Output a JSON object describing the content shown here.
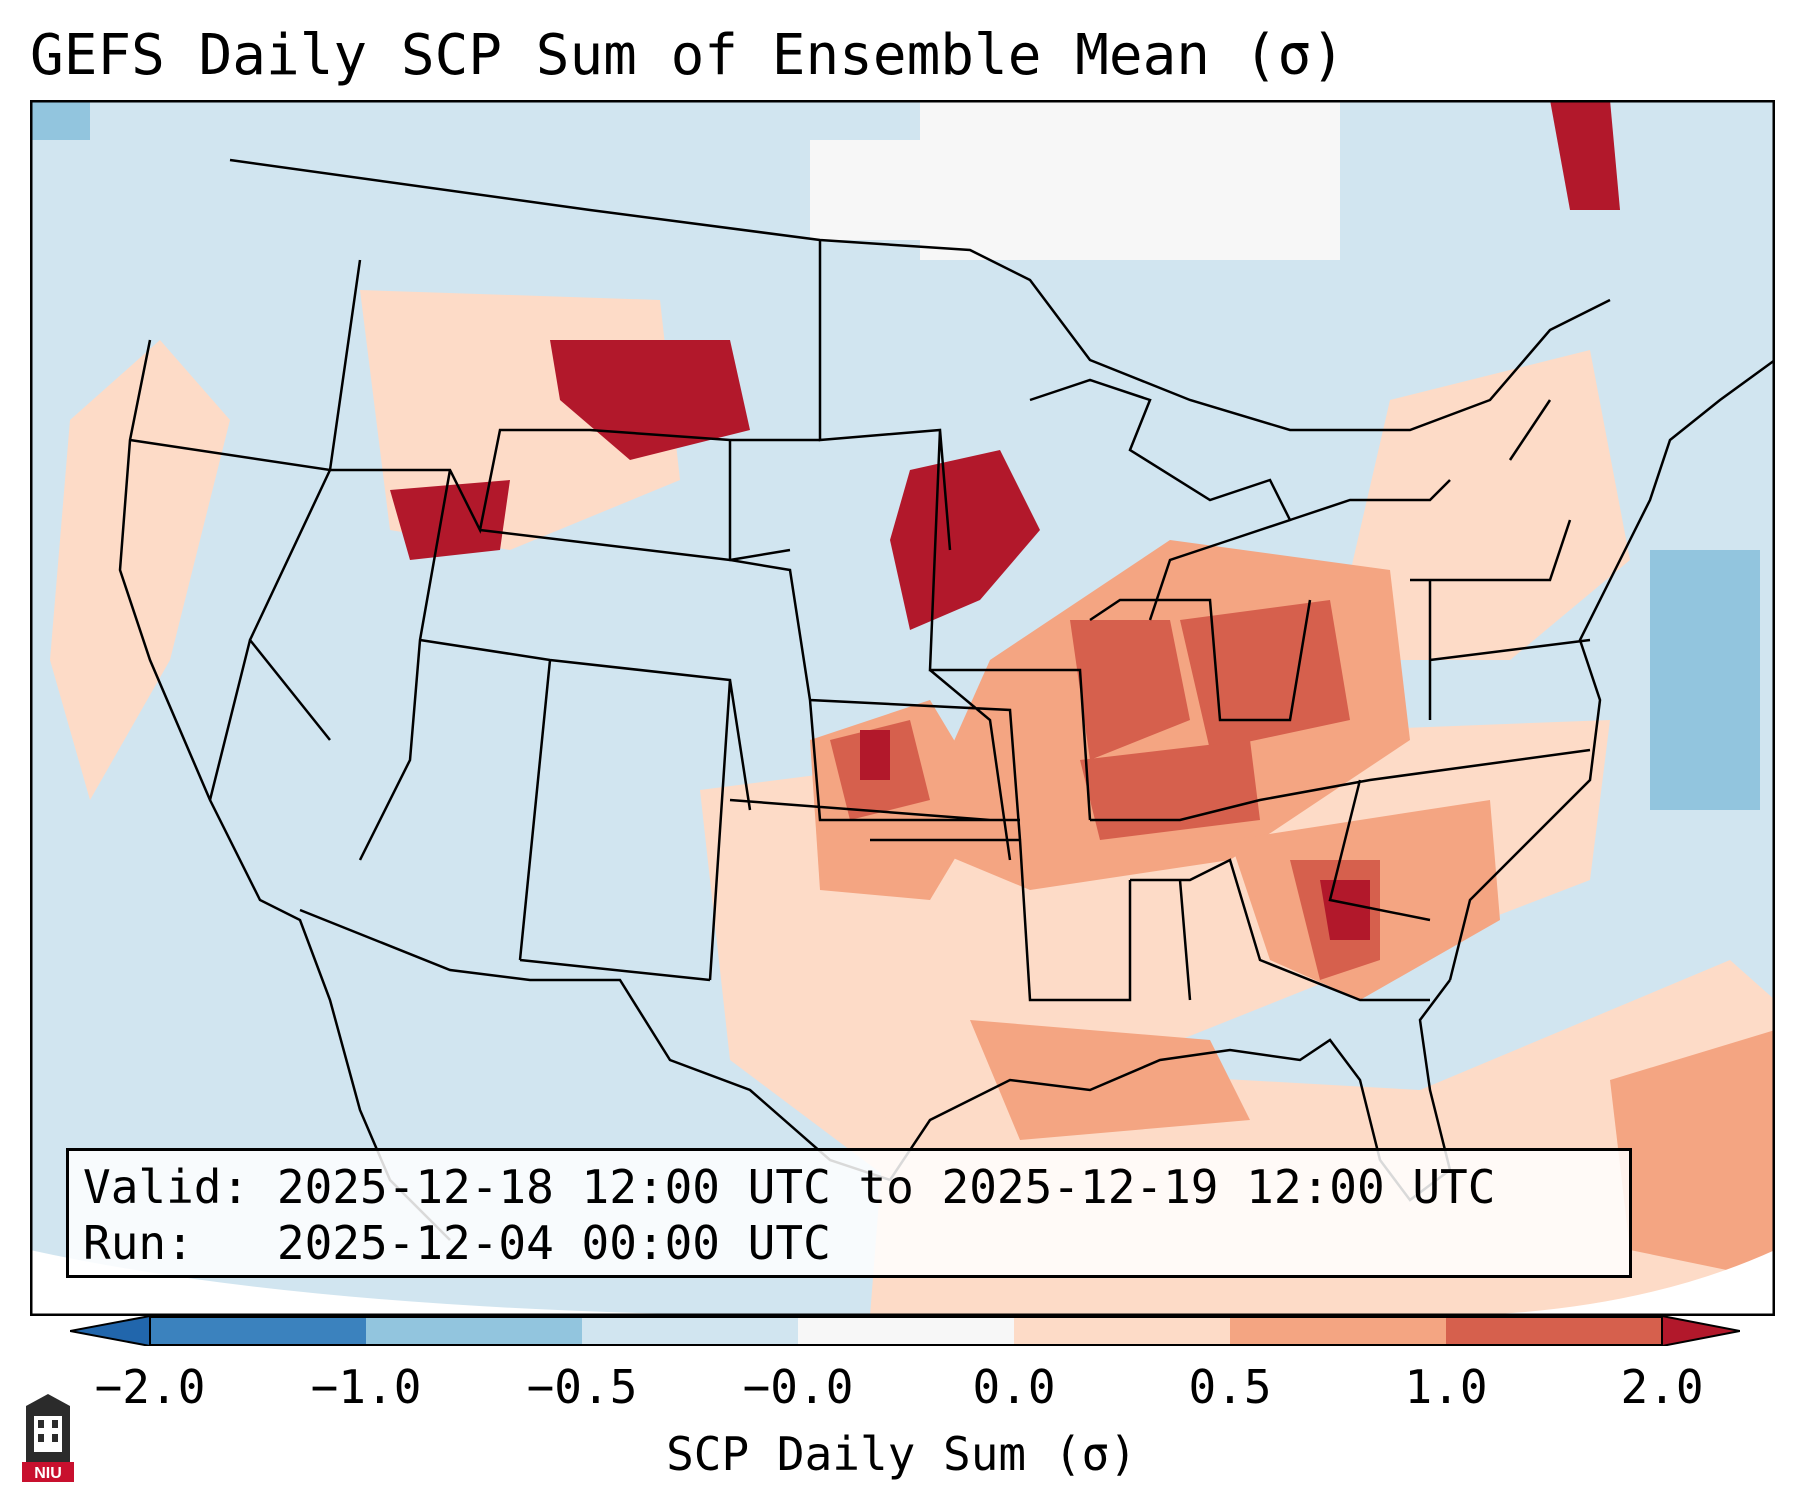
{
  "title": "GEFS Daily SCP Sum of Ensemble Mean (σ)",
  "info": {
    "valid_label": "Valid:",
    "valid_value": "2025-12-18 12:00 UTC to 2025-12-19 12:00 UTC",
    "run_label": "Run:",
    "run_value": "2025-12-04 00:00 UTC"
  },
  "colorbar": {
    "label": "SCP Daily Sum (σ)",
    "ticks": [
      "−2.0",
      "−1.0",
      "−0.5",
      "−0.0",
      "0.0",
      "0.5",
      "1.0",
      "2.0"
    ],
    "colors": [
      "#3b82be",
      "#92c5de",
      "#d1e5f0",
      "#f7f7f7",
      "#fddbc7",
      "#f4a582",
      "#d6604d",
      "#b2182b"
    ],
    "extend_low": "#2166ac",
    "extend_high": "#b2182b"
  },
  "logo": {
    "text": "NIU"
  },
  "map": {
    "background_color": "#d1e5f0",
    "region": "Contiguous United States, Gulf of Mexico and western Atlantic",
    "highlight_regions": [
      {
        "name": "Upper Mississippi Valley",
        "level": "2.0"
      },
      {
        "name": "Northern Rockies",
        "level": "2.0"
      },
      {
        "name": "Georgia / Southeast",
        "level": "1.0"
      },
      {
        "name": "Ohio and Tennessee Valleys",
        "level": "1.0"
      },
      {
        "name": "Gulf Coast",
        "level": "0.5"
      }
    ]
  }
}
